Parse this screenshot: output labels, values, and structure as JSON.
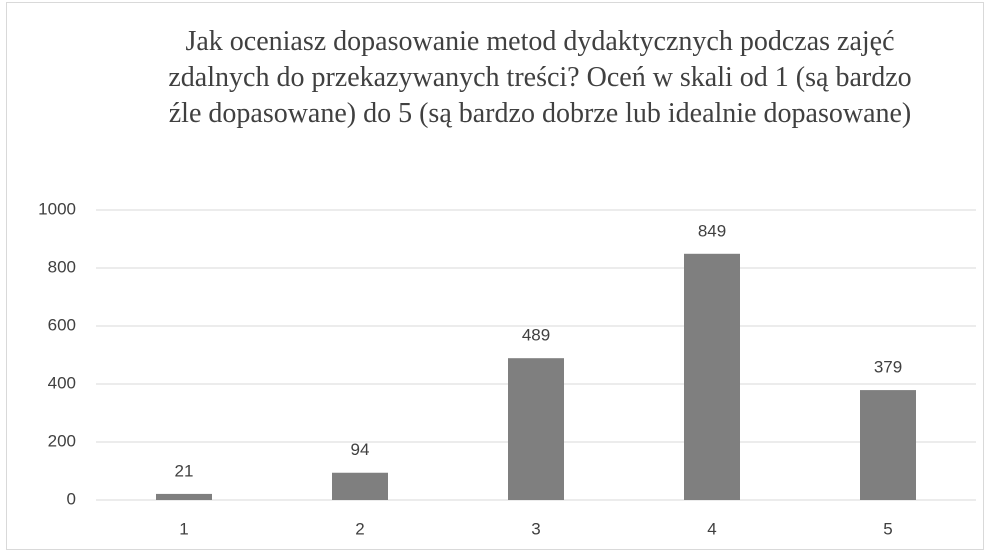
{
  "chart_data": {
    "type": "bar",
    "title": "Jak oceniasz dopasowanie metod dydaktycznych podczas zajęć zdalnych do przekazywanych treści? Oceń w skali od 1 (są bardzo źle dopasowane) do 5 (są bardzo dobrze lub idealnie dopasowane)",
    "categories": [
      "1",
      "2",
      "3",
      "4",
      "5"
    ],
    "values": [
      21,
      94,
      489,
      849,
      379
    ],
    "color": "#7f7f7f",
    "ylim": [
      0,
      1000
    ],
    "yticks": [
      0,
      200,
      400,
      600,
      800,
      1000
    ],
    "grid": true,
    "data_labels": true
  }
}
